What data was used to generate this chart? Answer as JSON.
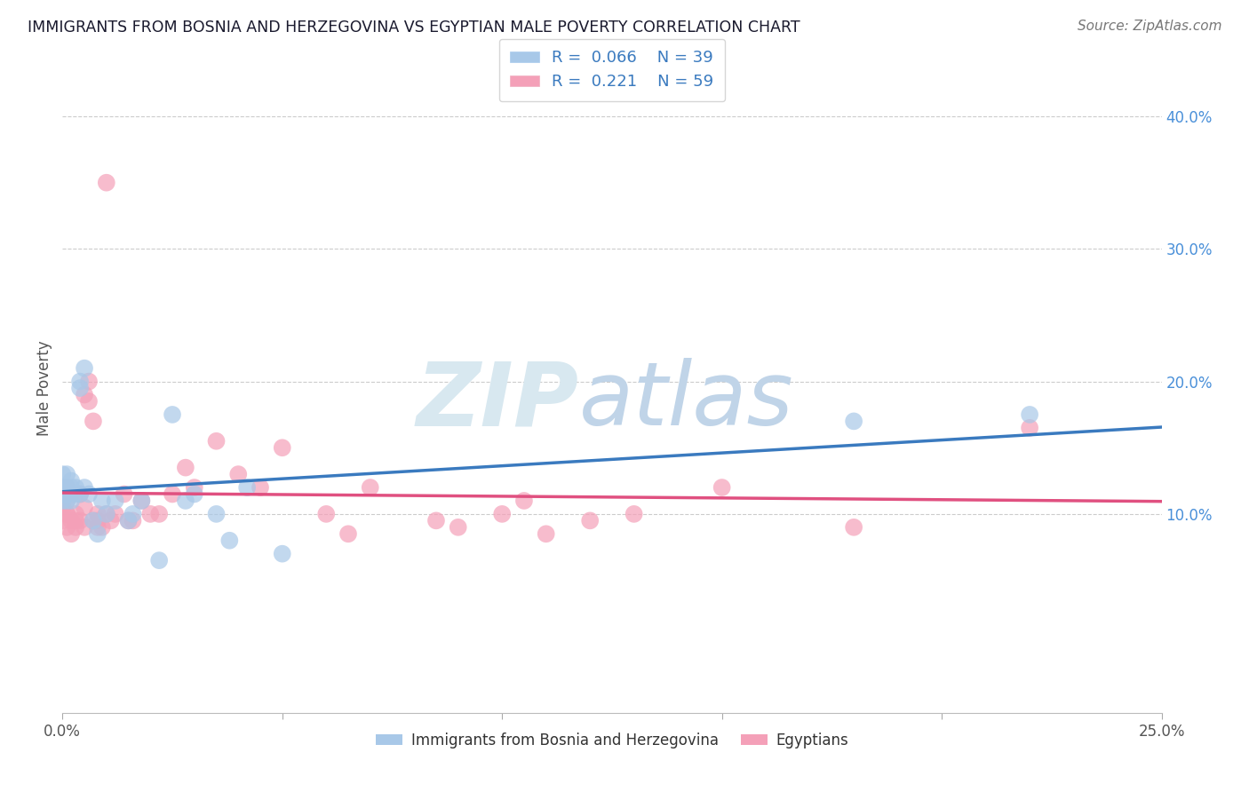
{
  "title": "IMMIGRANTS FROM BOSNIA AND HERZEGOVINA VS EGYPTIAN MALE POVERTY CORRELATION CHART",
  "source": "Source: ZipAtlas.com",
  "ylabel": "Male Poverty",
  "xlim": [
    0.0,
    0.25
  ],
  "ylim": [
    -0.05,
    0.44
  ],
  "color_bosnia": "#a8c8e8",
  "color_egyptian": "#f4a0b8",
  "line_color_bosnia": "#3a7abf",
  "line_color_egyptian": "#e05080",
  "legend_r1": "0.066",
  "legend_n1": "39",
  "legend_r2": "0.221",
  "legend_n2": "59",
  "bosnia_x": [
    0.0,
    0.0,
    0.0,
    0.0,
    0.0,
    0.001,
    0.001,
    0.001,
    0.001,
    0.001,
    0.002,
    0.002,
    0.002,
    0.003,
    0.003,
    0.004,
    0.004,
    0.004,
    0.005,
    0.005,
    0.006,
    0.007,
    0.008,
    0.009,
    0.01,
    0.012,
    0.015,
    0.016,
    0.018,
    0.022,
    0.025,
    0.028,
    0.03,
    0.035,
    0.038,
    0.042,
    0.05,
    0.18,
    0.22
  ],
  "bosnia_y": [
    0.13,
    0.12,
    0.11,
    0.12,
    0.115,
    0.115,
    0.13,
    0.12,
    0.115,
    0.11,
    0.12,
    0.125,
    0.11,
    0.115,
    0.12,
    0.2,
    0.195,
    0.115,
    0.21,
    0.12,
    0.115,
    0.095,
    0.085,
    0.11,
    0.1,
    0.11,
    0.095,
    0.1,
    0.11,
    0.065,
    0.175,
    0.11,
    0.115,
    0.1,
    0.08,
    0.12,
    0.07,
    0.17,
    0.175
  ],
  "egyptian_x": [
    0.0,
    0.0,
    0.0,
    0.0,
    0.0,
    0.001,
    0.001,
    0.001,
    0.001,
    0.001,
    0.002,
    0.002,
    0.002,
    0.003,
    0.003,
    0.003,
    0.004,
    0.004,
    0.005,
    0.005,
    0.005,
    0.006,
    0.006,
    0.007,
    0.007,
    0.008,
    0.008,
    0.008,
    0.009,
    0.01,
    0.01,
    0.011,
    0.012,
    0.014,
    0.015,
    0.016,
    0.018,
    0.02,
    0.022,
    0.025,
    0.028,
    0.03,
    0.035,
    0.04,
    0.045,
    0.05,
    0.06,
    0.065,
    0.07,
    0.085,
    0.09,
    0.1,
    0.105,
    0.11,
    0.12,
    0.13,
    0.15,
    0.18,
    0.22
  ],
  "egyptian_y": [
    0.11,
    0.105,
    0.095,
    0.105,
    0.115,
    0.12,
    0.1,
    0.09,
    0.1,
    0.11,
    0.085,
    0.095,
    0.115,
    0.09,
    0.095,
    0.1,
    0.095,
    0.115,
    0.09,
    0.105,
    0.19,
    0.2,
    0.185,
    0.17,
    0.095,
    0.1,
    0.09,
    0.095,
    0.09,
    0.1,
    0.35,
    0.095,
    0.1,
    0.115,
    0.095,
    0.095,
    0.11,
    0.1,
    0.1,
    0.115,
    0.135,
    0.12,
    0.155,
    0.13,
    0.12,
    0.15,
    0.1,
    0.085,
    0.12,
    0.095,
    0.09,
    0.1,
    0.11,
    0.085,
    0.095,
    0.1,
    0.12,
    0.09,
    0.165
  ],
  "watermark_zip_color": "#d8e8f0",
  "watermark_atlas_color": "#c0d4e8"
}
